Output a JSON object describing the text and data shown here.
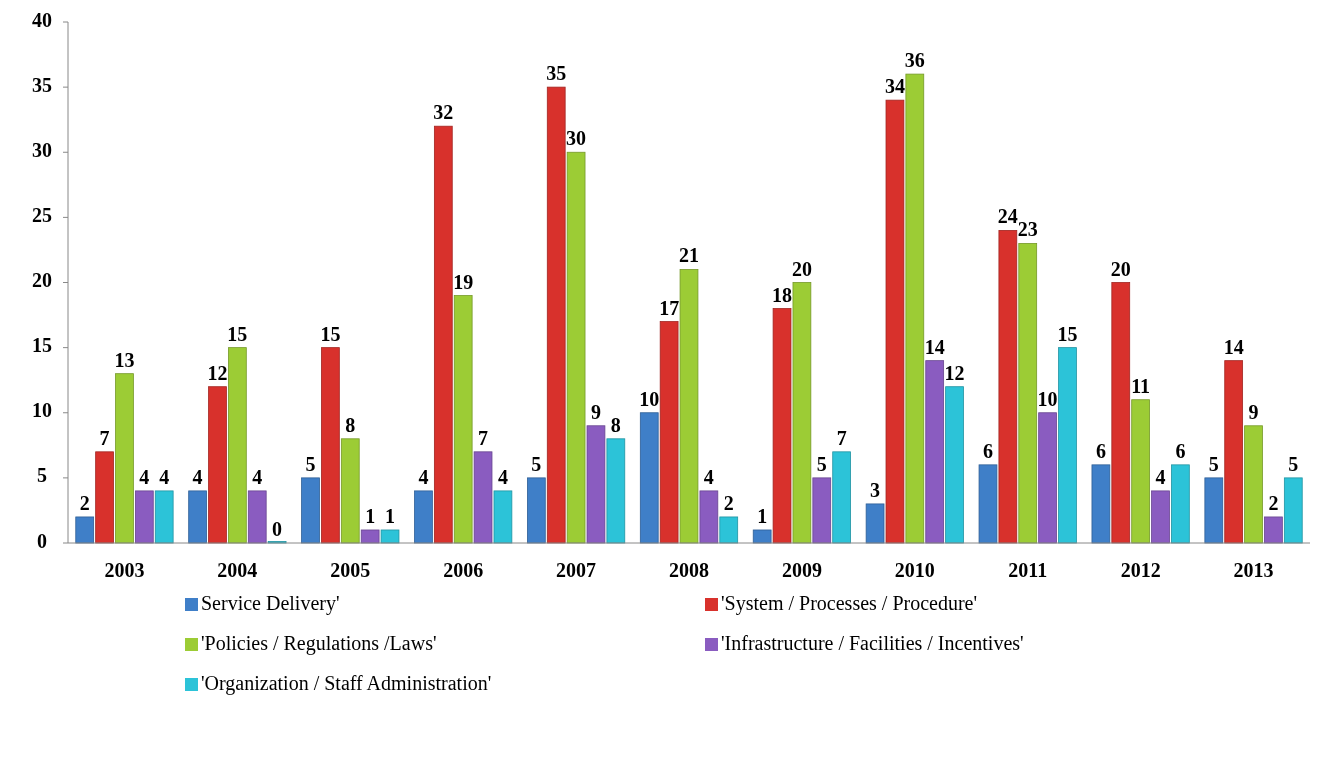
{
  "chart_data": {
    "type": "bar",
    "categories": [
      "2003",
      "2004",
      "2005",
      "2006",
      "2007",
      "2008",
      "2009",
      "2010",
      "2011",
      "2012",
      "2013"
    ],
    "series": [
      {
        "name": "Service Delivery'",
        "color": "#3f7fc8",
        "values": [
          2,
          4,
          5,
          4,
          5,
          10,
          1,
          3,
          6,
          6,
          5
        ]
      },
      {
        "name": "'System / Processes / Procedure'",
        "color": "#d8312c",
        "values": [
          7,
          12,
          15,
          32,
          35,
          17,
          18,
          34,
          24,
          20,
          14
        ]
      },
      {
        "name": "'Policies / Regulations /Laws'",
        "color": "#9ccc35",
        "values": [
          13,
          15,
          8,
          19,
          30,
          21,
          20,
          36,
          23,
          11,
          9
        ]
      },
      {
        "name": "'Infrastructure / Facilities / Incentives'",
        "color": "#8a5cc0",
        "values": [
          4,
          4,
          1,
          7,
          9,
          4,
          5,
          14,
          10,
          4,
          2
        ]
      },
      {
        "name": "'Organization / Staff Administration'",
        "color": "#2cc3d8",
        "values": [
          4,
          0,
          1,
          4,
          8,
          2,
          7,
          12,
          15,
          6,
          5
        ]
      }
    ],
    "ylim": [
      0,
      40
    ],
    "yticks": [
      0,
      5,
      10,
      15,
      20,
      25,
      30,
      35,
      40
    ],
    "grid": false,
    "legend": "bottom",
    "data_labels": true
  }
}
